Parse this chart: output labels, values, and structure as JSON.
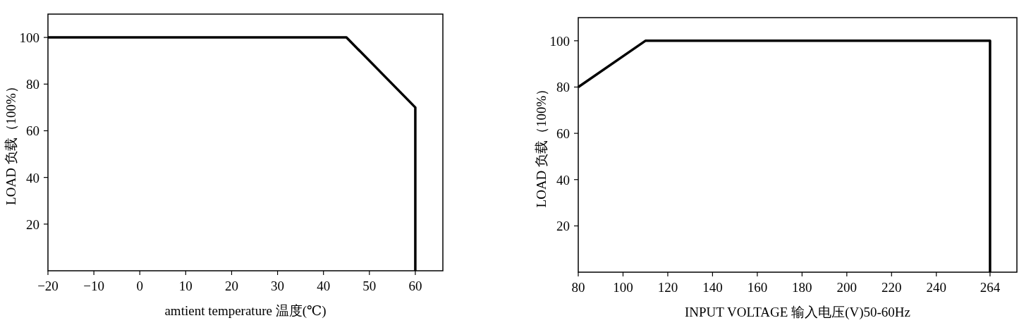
{
  "chart_data": [
    {
      "type": "line",
      "xlabel": "amtient temperature 温度(℃)",
      "ylabel": "LOAD 负载（100%）",
      "x": [
        -20,
        45,
        60,
        60
      ],
      "series": [
        {
          "color": "#000000",
          "values": [
            100,
            100,
            70,
            0
          ]
        }
      ],
      "xlim": [
        -20,
        66
      ],
      "ylim": [
        0,
        110
      ],
      "xticks": [
        {
          "value": -20,
          "label": "−20"
        },
        {
          "value": -10,
          "label": "−10"
        },
        0,
        10,
        20,
        30,
        40,
        50,
        60
      ],
      "yticks": [
        20,
        40,
        60,
        80,
        100
      ],
      "grid": false,
      "marker": "none",
      "line_style": "solid"
    },
    {
      "type": "line",
      "xlabel": "INPUT VOLTAGE 输入电压(V)50-60Hz",
      "ylabel": "LOAD 负载（100%）",
      "x": [
        80,
        110,
        264,
        264
      ],
      "series": [
        {
          "color": "#000000",
          "values": [
            80,
            100,
            100,
            0
          ]
        }
      ],
      "xlim": [
        80,
        276
      ],
      "ylim": [
        0,
        110
      ],
      "xticks": [
        80,
        100,
        120,
        140,
        160,
        180,
        200,
        220,
        240,
        264
      ],
      "yticks": [
        20,
        40,
        60,
        80,
        100
      ],
      "grid": false,
      "marker": "none",
      "line_style": "solid"
    }
  ]
}
